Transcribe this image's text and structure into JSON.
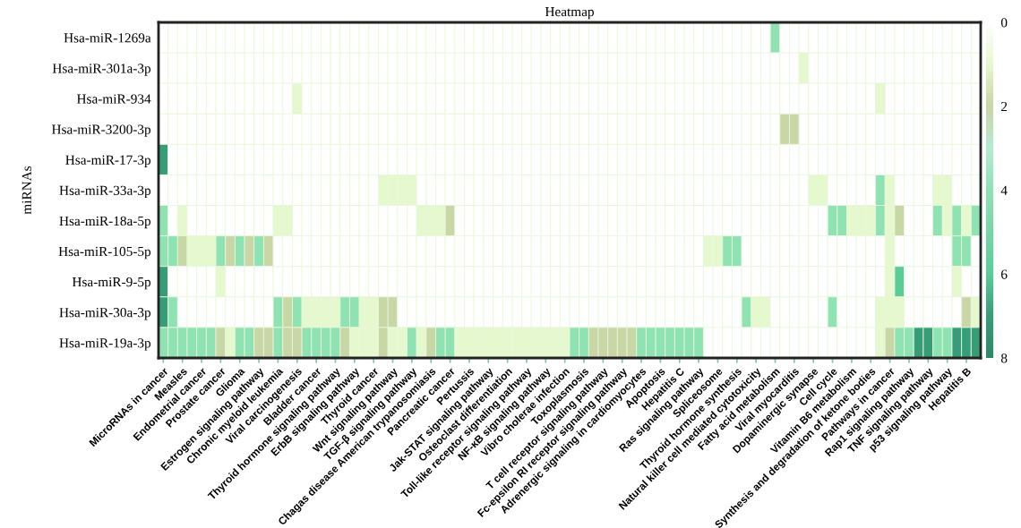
{
  "chart_data": {
    "type": "heatmap",
    "title": "Heatmap",
    "ylabel": "miRNAs",
    "categories": [
      "MicroRNAs in cancer",
      null,
      "Measles",
      null,
      "Endometrial cancer",
      null,
      "Prostate cancer",
      null,
      "Glioma",
      null,
      "Estrogen signaling pathway",
      null,
      "Chronic myeloid leukemia",
      null,
      "Viral carcinogenesis",
      null,
      "Bladder cancer",
      null,
      "Thyroid hormone signaling pathway",
      null,
      "ErbB signaling pathway",
      null,
      "Thyroid cancer",
      null,
      "Wnt signaling pathway",
      null,
      "TGF-β signaling pathway",
      null,
      "Chagas disease American trypanosomiasis",
      null,
      "Pancreatic cancer",
      null,
      "Pertussis",
      null,
      "Jak-STAT signaling pathway",
      null,
      "Osteoclast differentiation",
      null,
      "Toll-like receptor signaling pathway",
      null,
      "NF-κB signaling pathway",
      null,
      "Vibro cholerae infection",
      null,
      "Toxoplasmosis",
      null,
      "T cell receptor signaling pathway",
      null,
      "Fc-epsilon RI receptor signaling pathway",
      null,
      "Adrenergic signaling in cardiomyocytes",
      null,
      "Apoptosis",
      null,
      "Hepatitis C",
      null,
      "Ras signaling pathway",
      null,
      "Spliceosome",
      null,
      "Thyroid hormone synthesis",
      null,
      "Natural killer cell mediated cytotoxicity",
      null,
      "Fatty acid metabolism",
      null,
      "Viral myocarditis",
      null,
      "Dopaminergic synapse",
      null,
      "Cell cycle",
      null,
      "Vitamin B6 metabolism",
      null,
      "Synthesis and degradation of ketone bodies",
      null,
      "Pathways in cancer",
      null,
      "Rap1 signaling pathway",
      null,
      "TNF signaling pathway",
      null,
      "p53 signaling pathway",
      null,
      "Hepatitis B",
      null
    ],
    "y_categories": [
      "Hsa-miR-1269a",
      "Hsa-miR-301a-3p",
      "Hsa-miR-934",
      "Hsa-miR-3200-3p",
      "Hsa-miR-17-3p",
      "Hsa-miR-33a-3p",
      "Hsa-miR-18a-5p",
      "Hsa-miR-105-5p",
      "Hsa-miR-9-5p",
      "Hsa-miR-30a-3p",
      "Hsa-miR-19a-3p"
    ],
    "cells": [
      [
        0,
        0,
        0,
        0,
        0,
        0,
        0,
        0,
        0,
        0,
        0,
        0,
        0,
        0,
        0,
        0,
        0,
        0,
        0,
        0,
        0,
        0,
        0,
        0,
        0,
        0,
        0,
        0,
        0,
        0,
        0,
        0,
        0,
        0,
        0,
        0,
        0,
        0,
        0,
        0,
        0,
        0,
        0,
        0,
        0,
        0,
        0,
        0,
        0,
        0,
        0,
        0,
        0,
        0,
        0,
        0,
        0,
        0,
        0,
        0,
        0,
        0,
        0,
        0,
        4,
        0,
        0,
        0,
        0,
        0,
        0,
        0,
        0,
        0,
        0,
        0,
        0,
        0,
        0,
        0,
        0,
        0,
        0,
        0,
        0,
        0
      ],
      [
        0,
        0,
        0,
        0,
        0,
        0,
        0,
        0,
        0,
        0,
        0,
        0,
        0,
        0,
        0,
        0,
        0,
        0,
        0,
        0,
        0,
        0,
        0,
        0,
        0,
        0,
        0,
        0,
        0,
        0,
        0,
        0,
        0,
        0,
        0,
        0,
        0,
        0,
        0,
        0,
        0,
        0,
        0,
        0,
        0,
        0,
        0,
        0,
        0,
        0,
        0,
        0,
        0,
        0,
        0,
        0,
        0,
        0,
        0,
        0,
        0,
        0,
        0,
        0,
        0,
        0,
        0,
        1,
        0,
        0,
        0,
        0,
        0,
        0,
        0,
        0,
        0,
        0,
        0,
        0,
        0,
        0,
        0,
        0,
        0,
        0
      ],
      [
        0,
        0,
        0,
        0,
        0,
        0,
        0,
        0,
        0,
        0,
        0,
        0,
        0,
        0,
        1,
        0,
        0,
        0,
        0,
        0,
        0,
        0,
        0,
        0,
        0,
        0,
        0,
        0,
        0,
        0,
        0,
        0,
        0,
        0,
        0,
        0,
        0,
        0,
        0,
        0,
        0,
        0,
        0,
        0,
        0,
        0,
        0,
        0,
        0,
        0,
        0,
        0,
        0,
        0,
        0,
        0,
        0,
        0,
        0,
        0,
        0,
        0,
        0,
        0,
        0,
        0,
        0,
        0,
        0,
        0,
        0,
        0,
        0,
        0,
        0,
        1,
        0,
        0,
        0,
        0,
        0,
        0,
        0,
        0,
        0,
        0
      ],
      [
        0,
        0,
        0,
        0,
        0,
        0,
        0,
        0,
        0,
        0,
        0,
        0,
        0,
        0,
        0,
        0,
        0,
        0,
        0,
        0,
        0,
        0,
        0,
        0,
        0,
        0,
        0,
        0,
        0,
        0,
        0,
        0,
        0,
        0,
        0,
        0,
        0,
        0,
        0,
        0,
        0,
        0,
        0,
        0,
        0,
        0,
        0,
        0,
        0,
        0,
        0,
        0,
        0,
        0,
        0,
        0,
        0,
        0,
        0,
        0,
        0,
        0,
        0,
        0,
        0,
        2,
        2,
        0,
        0,
        0,
        0,
        0,
        0,
        0,
        0,
        0,
        0,
        0,
        0,
        0,
        0,
        0,
        0,
        0,
        0,
        0
      ],
      [
        7,
        0,
        0,
        0,
        0,
        0,
        0,
        0,
        0,
        0,
        0,
        0,
        0,
        0,
        0,
        0,
        0,
        0,
        0,
        0,
        0,
        0,
        0,
        0,
        0,
        0,
        0,
        0,
        0,
        0,
        0,
        0,
        0,
        0,
        0,
        0,
        0,
        0,
        0,
        0,
        0,
        0,
        0,
        0,
        0,
        0,
        0,
        0,
        0,
        0,
        0,
        0,
        0,
        0,
        0,
        0,
        0,
        0,
        0,
        0,
        0,
        0,
        0,
        0,
        0,
        0,
        0,
        0,
        0,
        0,
        0,
        0,
        0,
        0,
        0,
        0,
        0,
        0,
        0,
        0,
        0,
        0,
        0,
        0,
        0,
        0
      ],
      [
        0,
        0,
        0,
        0,
        0,
        0,
        0,
        0,
        0,
        0,
        0,
        0,
        0,
        0,
        0,
        0,
        0,
        0,
        0,
        0,
        0,
        0,
        0,
        1,
        1,
        1,
        1,
        0,
        0,
        0,
        0,
        0,
        0,
        0,
        0,
        0,
        0,
        0,
        0,
        0,
        0,
        0,
        0,
        0,
        0,
        0,
        0,
        0,
        0,
        0,
        0,
        0,
        0,
        0,
        0,
        0,
        0,
        0,
        0,
        0,
        0,
        0,
        0,
        0,
        0,
        0,
        0,
        0,
        1,
        1,
        0,
        0,
        0,
        0,
        0,
        4,
        1,
        0,
        0,
        0,
        0,
        1,
        1,
        0,
        0,
        0
      ],
      [
        4,
        0,
        1,
        0,
        0,
        0,
        0,
        0,
        0,
        0,
        0,
        0,
        1,
        1,
        0,
        0,
        0,
        0,
        0,
        0,
        0,
        0,
        0,
        0,
        0,
        0,
        0,
        1,
        1,
        1,
        2,
        0,
        0,
        0,
        0,
        0,
        0,
        0,
        0,
        0,
        0,
        0,
        0,
        0,
        0,
        0,
        0,
        0,
        0,
        0,
        0,
        0,
        0,
        0,
        0,
        0,
        0,
        0,
        0,
        0,
        0,
        0,
        0,
        0,
        0,
        0,
        0,
        0,
        0,
        0,
        4,
        4,
        1,
        1,
        1,
        4,
        1,
        2,
        0,
        0,
        0,
        4,
        1,
        4,
        1,
        4
      ],
      [
        4,
        4,
        2,
        1,
        1,
        1,
        4,
        2,
        4,
        2,
        4,
        2,
        0,
        0,
        0,
        0,
        0,
        0,
        0,
        0,
        0,
        0,
        0,
        0,
        0,
        0,
        0,
        0,
        0,
        0,
        0,
        0,
        0,
        0,
        0,
        0,
        0,
        0,
        0,
        0,
        0,
        0,
        0,
        0,
        0,
        0,
        0,
        0,
        0,
        0,
        0,
        0,
        0,
        0,
        0,
        0,
        0,
        1,
        1,
        4,
        4,
        0,
        0,
        0,
        0,
        0,
        0,
        0,
        0,
        0,
        0,
        0,
        0,
        0,
        0,
        0,
        1,
        0,
        0,
        0,
        0,
        0,
        0,
        4,
        4,
        0
      ],
      [
        7,
        0,
        0,
        0,
        0,
        0,
        1,
        0,
        0,
        0,
        0,
        0,
        0,
        0,
        0,
        0,
        0,
        0,
        0,
        0,
        0,
        0,
        0,
        0,
        0,
        0,
        0,
        0,
        0,
        0,
        0,
        0,
        0,
        0,
        0,
        0,
        0,
        0,
        0,
        0,
        0,
        0,
        0,
        0,
        0,
        0,
        0,
        0,
        0,
        0,
        0,
        0,
        0,
        0,
        0,
        0,
        0,
        0,
        0,
        0,
        0,
        0,
        0,
        0,
        0,
        0,
        0,
        0,
        0,
        0,
        0,
        0,
        0,
        0,
        0,
        0,
        1,
        6,
        0,
        0,
        0,
        0,
        0,
        1,
        0,
        0
      ],
      [
        7,
        4,
        0,
        0,
        0,
        0,
        0,
        0,
        0,
        0,
        0,
        0,
        4,
        2,
        4,
        1,
        1,
        1,
        1,
        4,
        4,
        1,
        1,
        2,
        2,
        0,
        0,
        0,
        0,
        0,
        0,
        0,
        0,
        0,
        0,
        0,
        0,
        0,
        0,
        0,
        0,
        0,
        0,
        0,
        0,
        0,
        0,
        0,
        0,
        0,
        0,
        0,
        0,
        0,
        0,
        0,
        0,
        0,
        0,
        0,
        0,
        4,
        1,
        1,
        0,
        0,
        0,
        0,
        0,
        0,
        4,
        0,
        0,
        0,
        0,
        1,
        1,
        1,
        0,
        0,
        0,
        0,
        0,
        0,
        2,
        1
      ],
      [
        4,
        4,
        4,
        4,
        4,
        4,
        2,
        1,
        4,
        4,
        2,
        2,
        4,
        2,
        2,
        4,
        4,
        4,
        4,
        2,
        1,
        1,
        1,
        2,
        1,
        1,
        4,
        1,
        2,
        4,
        4,
        1,
        1,
        1,
        1,
        1,
        1,
        1,
        1,
        1,
        1,
        1,
        1,
        4,
        4,
        2,
        2,
        2,
        2,
        2,
        4,
        4,
        4,
        4,
        4,
        4,
        4,
        0,
        0,
        0,
        0,
        0,
        0,
        0,
        0,
        0,
        0,
        0,
        0,
        0,
        0,
        0,
        0,
        0,
        0,
        1,
        2,
        4,
        4,
        7,
        7,
        4,
        4,
        7,
        7,
        7
      ]
    ],
    "clim": [
      0,
      8
    ],
    "cticks": [
      0,
      2,
      4,
      6,
      8
    ]
  }
}
